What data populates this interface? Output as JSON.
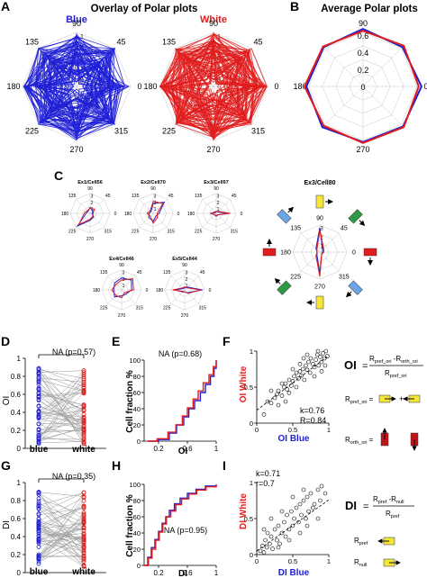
{
  "colors": {
    "blue": "#1f1fd6",
    "red": "#e01c1c",
    "yellow": "#f5e43a",
    "green": "#2e9a43",
    "sky": "#6aa6e6",
    "darkred": "#c0141a"
  },
  "panel_letters": [
    "A",
    "B",
    "C",
    "D",
    "E",
    "F",
    "G",
    "H",
    "I"
  ],
  "panel_a": {
    "title": "Overlay of Polar plots",
    "blue_label": "Blue",
    "white_label": "White",
    "angle_labels": [
      "90",
      "45",
      "0",
      "315",
      "270",
      "225",
      "180",
      "135"
    ],
    "radial_labels": [
      "1",
      "3",
      "5",
      "7",
      "9"
    ]
  },
  "panel_b": {
    "title": "Average Polar plots",
    "angle_labels": [
      "90",
      "0",
      "270",
      "180"
    ],
    "radial_labels": [
      "0.6",
      "0.4",
      "0.2",
      "0"
    ]
  },
  "panel_c": {
    "cells": [
      {
        "name": "Ex1/Cell56",
        "angles": [
          "90",
          "45",
          "0",
          "315",
          "270",
          "225",
          "180",
          "135"
        ],
        "rticks": [
          "3",
          "2",
          "1"
        ]
      },
      {
        "name": "Ex2/Cell70",
        "angles": [
          "90",
          "45",
          "0",
          "315",
          "270",
          "225",
          "180",
          "135"
        ],
        "rticks": [
          "3",
          "2",
          "1"
        ]
      },
      {
        "name": "Ex3/Cell97",
        "angles": [
          "90",
          "45",
          "0",
          "315",
          "270",
          "225",
          "180",
          "135"
        ],
        "rticks": [
          "3",
          "2",
          "1"
        ]
      },
      {
        "name": "Ex4/Cell46",
        "angles": [
          "90",
          "45",
          "0",
          "315",
          "270",
          "225",
          "180",
          "135"
        ],
        "rticks": [
          "3",
          "2",
          "1"
        ]
      },
      {
        "name": "Ex5/Cell44",
        "angles": [
          "90",
          "45",
          "0",
          "315",
          "270",
          "225",
          "180",
          "135"
        ],
        "rticks": [
          "3",
          "2",
          "1"
        ]
      }
    ],
    "big": {
      "name": "Ex3/Cell80",
      "angles": [
        "90",
        "45",
        "0",
        "315",
        "270",
        "225",
        "180",
        "135"
      ],
      "rticks": [
        "3",
        "2",
        "1"
      ]
    }
  },
  "panel_d": {
    "ylabel": "OI",
    "annotation": "NA (p=0.57)",
    "yticks": [
      "1",
      "0.8",
      "0.6",
      "0.4",
      "0.2",
      "0"
    ],
    "xticks": [
      "blue",
      "white"
    ]
  },
  "panel_e": {
    "ylabel": "Cell fraction %",
    "xlabel": "OI",
    "annotation": "NA (p=0.68)",
    "yticks": [
      "100",
      "80",
      "60",
      "40",
      "20",
      "0"
    ],
    "xticks": [
      "0.2",
      "0.6",
      "1"
    ]
  },
  "panel_f": {
    "ylabel": "OI White",
    "xlabel": "OI Blue",
    "k_text": "k=0.76",
    "r_text": "R=0.84",
    "yticks": [
      "1",
      "0.5",
      "0"
    ],
    "xticks": [
      "0",
      "0.5",
      "1"
    ]
  },
  "panel_g": {
    "ylabel": "DI",
    "annotation": "NA (p=0.35)",
    "yticks": [
      "1",
      "0.8",
      "0.6",
      "0.4",
      "0.2",
      "0"
    ],
    "xticks": [
      "blue",
      "white"
    ]
  },
  "panel_h": {
    "ylabel": "Cell fraction %",
    "xlabel": "DI",
    "annotation": "NA (p=0.95)",
    "yticks": [
      "100",
      "80",
      "60",
      "40",
      "20",
      "0"
    ],
    "xticks": [
      "0.2",
      "0.6",
      "1"
    ]
  },
  "panel_i": {
    "ylabel": "DI White",
    "xlabel": "DI Blue",
    "k_text": "k=0.71",
    "r_text": "r=0.7",
    "yticks": [
      "1",
      "0.5",
      "0"
    ],
    "xticks": [
      "0",
      "0.5",
      "1"
    ]
  },
  "formula_oi": {
    "lhs": "OI",
    "eq": "=",
    "num_a": "R",
    "num_a_sub": "pref_ori",
    "minus": " -R",
    "num_b_sub": "orth_ori",
    "den": "R",
    "den_sub": "pref_ori",
    "pref_R": "R",
    "pref_sub": "pref_ori",
    "pref_eq": "=",
    "plus": "+",
    "orth_R": "R",
    "orth_sub": "orth_ori",
    "orth_eq": "="
  },
  "formula_di": {
    "lhs": "DI",
    "eq": "=",
    "num_a": "R",
    "num_a_sub": "pref",
    "minus": " -R",
    "num_b_sub": "null",
    "den": "R",
    "den_sub": "pref",
    "pref_R": "R",
    "pref_sub": "pref",
    "null_R": "R",
    "null_sub": "null"
  },
  "chart_data": [
    {
      "type": "polar",
      "title": "Overlay of Polar plots",
      "panel": "A",
      "series": [
        {
          "name": "Blue",
          "values": [
            1,
            3,
            5,
            7,
            9
          ]
        },
        {
          "name": "White",
          "values": [
            1,
            3,
            5,
            7,
            9
          ]
        }
      ],
      "angles_deg": [
        0,
        45,
        90,
        135,
        180,
        225,
        270,
        315
      ]
    },
    {
      "type": "polar",
      "title": "Average Polar plots",
      "panel": "B",
      "angles_deg": [
        90,
        45,
        0,
        315,
        270,
        225,
        180,
        135
      ],
      "series": [
        {
          "name": "Blue",
          "values": [
            0.62,
            0.6,
            0.63,
            0.61,
            0.6,
            0.62,
            0.61,
            0.6
          ]
        },
        {
          "name": "White",
          "values": [
            0.6,
            0.62,
            0.6,
            0.62,
            0.61,
            0.6,
            0.63,
            0.61
          ]
        }
      ],
      "rlim": [
        0,
        0.6
      ]
    },
    {
      "type": "line",
      "panel": "D",
      "ylabel": "OI",
      "annotation": "NA (p=0.57)",
      "ylim": [
        0,
        1
      ],
      "categories": [
        "blue",
        "white"
      ],
      "pair_count": 60
    },
    {
      "type": "line",
      "panel": "E",
      "ylabel": "Cell fraction %",
      "xlabel": "OI",
      "annotation": "NA (p=0.68)",
      "xlim": [
        0,
        1
      ],
      "ylim": [
        0,
        100
      ],
      "series": [
        {
          "name": "Blue",
          "x": [
            0.05,
            0.2,
            0.35,
            0.45,
            0.55,
            0.62,
            0.7,
            0.78,
            0.85,
            0.92,
            0.97,
            1.0
          ],
          "y": [
            0,
            2,
            10,
            20,
            30,
            40,
            50,
            60,
            70,
            80,
            90,
            100
          ]
        },
        {
          "name": "White",
          "x": [
            0.05,
            0.18,
            0.33,
            0.44,
            0.53,
            0.6,
            0.68,
            0.75,
            0.82,
            0.9,
            0.96,
            1.0
          ],
          "y": [
            0,
            3,
            11,
            20,
            31,
            41,
            52,
            62,
            72,
            82,
            92,
            100
          ]
        }
      ]
    },
    {
      "type": "scatter",
      "panel": "F",
      "xlabel": "OI Blue",
      "ylabel": "OI White",
      "xlim": [
        0,
        1
      ],
      "ylim": [
        0,
        1
      ],
      "fit": {
        "slope": 0.76,
        "intercept": 0.18
      },
      "points": [
        [
          0.1,
          0.12
        ],
        [
          0.15,
          0.3
        ],
        [
          0.2,
          0.28
        ],
        [
          0.25,
          0.35
        ],
        [
          0.28,
          0.4
        ],
        [
          0.3,
          0.45
        ],
        [
          0.35,
          0.38
        ],
        [
          0.38,
          0.5
        ],
        [
          0.4,
          0.55
        ],
        [
          0.42,
          0.47
        ],
        [
          0.45,
          0.6
        ],
        [
          0.48,
          0.52
        ],
        [
          0.5,
          0.58
        ],
        [
          0.52,
          0.65
        ],
        [
          0.55,
          0.7
        ],
        [
          0.55,
          0.5
        ],
        [
          0.58,
          0.62
        ],
        [
          0.6,
          0.72
        ],
        [
          0.62,
          0.66
        ],
        [
          0.64,
          0.75
        ],
        [
          0.66,
          0.6
        ],
        [
          0.68,
          0.8
        ],
        [
          0.7,
          0.74
        ],
        [
          0.72,
          0.85
        ],
        [
          0.74,
          0.7
        ],
        [
          0.75,
          0.9
        ],
        [
          0.78,
          0.82
        ],
        [
          0.8,
          0.78
        ],
        [
          0.82,
          0.88
        ],
        [
          0.84,
          0.95
        ],
        [
          0.86,
          0.8
        ],
        [
          0.88,
          0.92
        ],
        [
          0.9,
          0.85
        ],
        [
          0.92,
          0.97
        ],
        [
          0.94,
          0.9
        ],
        [
          0.96,
          1.0
        ],
        [
          0.98,
          0.93
        ],
        [
          0.3,
          0.25
        ],
        [
          0.35,
          0.55
        ],
        [
          0.45,
          0.42
        ],
        [
          0.6,
          0.82
        ],
        [
          0.7,
          0.95
        ],
        [
          0.8,
          0.65
        ],
        [
          0.9,
          0.72
        ],
        [
          0.95,
          0.8
        ],
        [
          0.5,
          0.75
        ],
        [
          0.65,
          0.9
        ],
        [
          0.85,
          1.0
        ],
        [
          0.2,
          0.45
        ],
        [
          0.4,
          0.3
        ]
      ]
    },
    {
      "type": "line",
      "panel": "G",
      "ylabel": "DI",
      "annotation": "NA (p=0.35)",
      "ylim": [
        0,
        1
      ],
      "categories": [
        "blue",
        "white"
      ],
      "pair_count": 60
    },
    {
      "type": "line",
      "panel": "H",
      "ylabel": "Cell fraction %",
      "xlabel": "DI",
      "annotation": "NA (p=0.95)",
      "xlim": [
        0,
        1
      ],
      "ylim": [
        0,
        100
      ],
      "series": [
        {
          "name": "Blue",
          "x": [
            0.0,
            0.05,
            0.1,
            0.15,
            0.2,
            0.25,
            0.3,
            0.35,
            0.42,
            0.5,
            0.6,
            0.72,
            0.85,
            1.0
          ],
          "y": [
            0,
            10,
            22,
            32,
            42,
            52,
            60,
            68,
            76,
            83,
            89,
            94,
            98,
            100
          ]
        },
        {
          "name": "White",
          "x": [
            0.0,
            0.06,
            0.11,
            0.16,
            0.21,
            0.26,
            0.31,
            0.37,
            0.44,
            0.52,
            0.62,
            0.73,
            0.86,
            1.0
          ],
          "y": [
            0,
            9,
            20,
            31,
            41,
            51,
            60,
            67,
            75,
            82,
            88,
            93,
            97,
            100
          ]
        }
      ]
    },
    {
      "type": "scatter",
      "panel": "I",
      "xlabel": "DI Blue",
      "ylabel": "DI White",
      "xlim": [
        0,
        1
      ],
      "ylim": [
        0,
        1
      ],
      "fit": {
        "slope": 0.71,
        "intercept": 0.05
      },
      "points": [
        [
          0.05,
          0.05
        ],
        [
          0.08,
          0.12
        ],
        [
          0.1,
          0.03
        ],
        [
          0.12,
          0.2
        ],
        [
          0.14,
          0.1
        ],
        [
          0.15,
          0.3
        ],
        [
          0.18,
          0.15
        ],
        [
          0.2,
          0.25
        ],
        [
          0.22,
          0.08
        ],
        [
          0.25,
          0.35
        ],
        [
          0.28,
          0.2
        ],
        [
          0.3,
          0.4
        ],
        [
          0.32,
          0.15
        ],
        [
          0.35,
          0.3
        ],
        [
          0.38,
          0.45
        ],
        [
          0.4,
          0.25
        ],
        [
          0.42,
          0.55
        ],
        [
          0.45,
          0.35
        ],
        [
          0.48,
          0.6
        ],
        [
          0.5,
          0.4
        ],
        [
          0.52,
          0.5
        ],
        [
          0.55,
          0.65
        ],
        [
          0.58,
          0.45
        ],
        [
          0.6,
          0.7
        ],
        [
          0.62,
          0.55
        ],
        [
          0.65,
          0.75
        ],
        [
          0.68,
          0.5
        ],
        [
          0.7,
          0.8
        ],
        [
          0.72,
          0.6
        ],
        [
          0.75,
          0.85
        ],
        [
          0.78,
          0.65
        ],
        [
          0.8,
          0.7
        ],
        [
          0.85,
          0.9
        ],
        [
          0.88,
          0.75
        ],
        [
          0.9,
          0.95
        ],
        [
          0.95,
          0.85
        ],
        [
          0.3,
          0.1
        ],
        [
          0.45,
          0.2
        ],
        [
          0.6,
          0.3
        ],
        [
          0.7,
          0.4
        ],
        [
          0.2,
          0.5
        ],
        [
          0.1,
          0.35
        ],
        [
          0.35,
          0.6
        ],
        [
          0.5,
          0.8
        ],
        [
          0.65,
          0.9
        ],
        [
          0.85,
          0.5
        ]
      ]
    }
  ]
}
